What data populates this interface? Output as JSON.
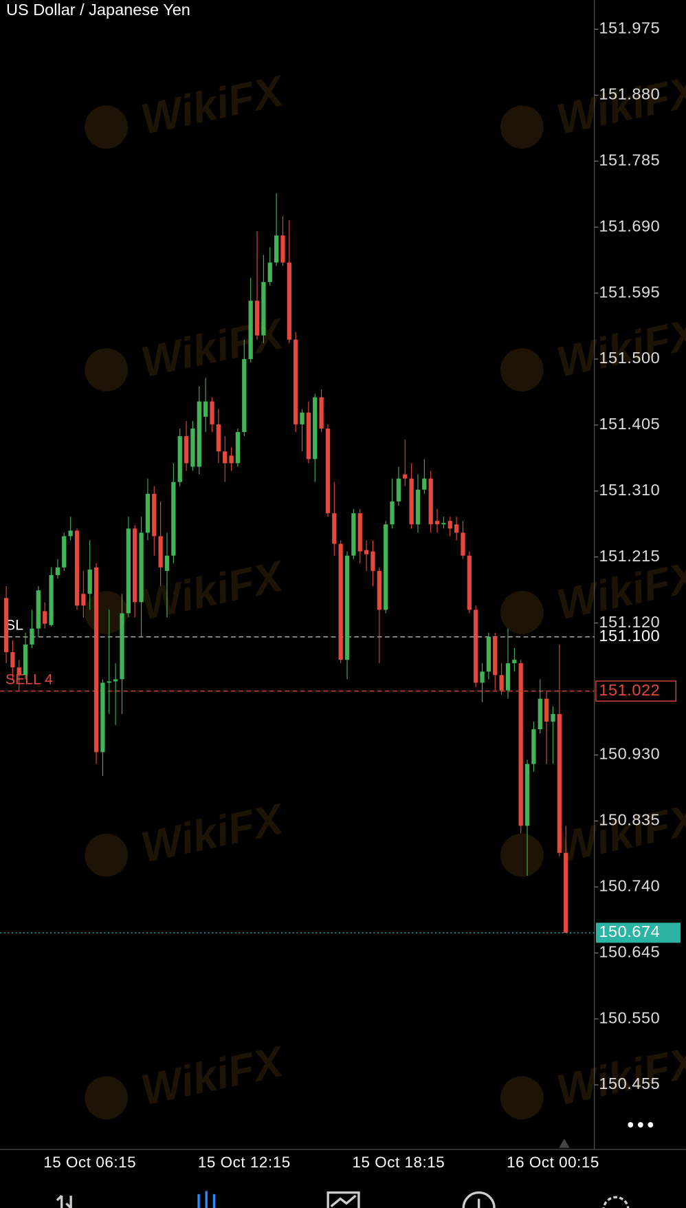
{
  "chart_data": {
    "type": "candlestick",
    "title": "US Dollar / Japanese Yen",
    "watermark": "WikiFX",
    "up_color": "#43b357",
    "down_color": "#e5483c",
    "categories": [
      null,
      null,
      null,
      null,
      null,
      null,
      null,
      null,
      null,
      null,
      null,
      null,
      null,
      "15 Oct 06:15",
      null,
      null,
      null,
      null,
      null,
      null,
      null,
      null,
      null,
      null,
      null,
      null,
      null,
      null,
      null,
      null,
      null,
      null,
      null,
      null,
      null,
      null,
      null,
      "15 Oct 12:15",
      null,
      null,
      null,
      null,
      null,
      null,
      null,
      null,
      null,
      null,
      null,
      null,
      null,
      null,
      null,
      null,
      null,
      null,
      null,
      null,
      null,
      null,
      null,
      "15 Oct 18:15",
      null,
      null,
      null,
      null,
      null,
      null,
      null,
      null,
      null,
      null,
      null,
      null,
      null,
      null,
      null,
      null,
      null,
      null,
      null,
      null,
      null,
      null,
      null,
      "16 Oct 00:15",
      null,
      null
    ],
    "series": [
      {
        "open": [
          151.156,
          151.078,
          151.056,
          151.045,
          151.089,
          151.112,
          151.137,
          151.117,
          151.189,
          151.2,
          151.245,
          151.253,
          151.162,
          151.162,
          151.2,
          150.934,
          151.034,
          151.036,
          151.039,
          151.134,
          151.256,
          151.15,
          151.25,
          151.306,
          151.245,
          151.195,
          151.217,
          151.323,
          151.389,
          151.345,
          151.345,
          151.417,
          151.439,
          151.406,
          151.367,
          151.361,
          151.35,
          151.395,
          151.5,
          151.584,
          151.534,
          151.611,
          151.639,
          151.678,
          151.639,
          151.528,
          151.406,
          151.423,
          151.356,
          151.445,
          151.4,
          151.278,
          151.234,
          151.067,
          151.217,
          151.278,
          151.225,
          151.223,
          151.195,
          151.139,
          151.262,
          151.295,
          151.334,
          151.328,
          151.262,
          151.312,
          151.328,
          151.267,
          151.262,
          151.267,
          151.262,
          151.25,
          151.217,
          151.139,
          151.034,
          151.05,
          151.1,
          151.045,
          151.023,
          151.062,
          151.062,
          150.828,
          150.917,
          150.967,
          151.011,
          150.978,
          150.989,
          150.789
        ],
        "high": [
          151.173,
          151.095,
          151.067,
          151.106,
          151.139,
          151.173,
          151.15,
          151.2,
          151.212,
          151.25,
          151.273,
          151.256,
          151.195,
          151.239,
          151.206,
          151.039,
          151.139,
          151.062,
          151.162,
          151.273,
          151.261,
          151.273,
          151.328,
          151.317,
          151.295,
          151.25,
          151.35,
          151.4,
          151.411,
          151.411,
          151.461,
          151.473,
          151.445,
          151.428,
          151.389,
          151.373,
          151.4,
          151.528,
          151.617,
          151.684,
          151.65,
          151.661,
          151.739,
          151.706,
          151.7,
          151.539,
          151.428,
          151.439,
          151.45,
          151.456,
          151.406,
          151.323,
          151.239,
          151.223,
          151.284,
          151.284,
          151.239,
          151.239,
          151.2,
          151.267,
          151.328,
          151.345,
          151.384,
          151.35,
          151.334,
          151.356,
          151.339,
          151.284,
          151.273,
          151.273,
          151.273,
          151.267,
          151.223,
          151.145,
          151.062,
          151.106,
          151.106,
          151.062,
          151.112,
          151.084,
          151.067,
          150.923,
          150.978,
          151.039,
          151.023,
          151.0,
          151.089,
          150.828
        ],
        "low": [
          151.062,
          151.039,
          151.023,
          151.039,
          151.084,
          151.1,
          151.112,
          151.115,
          151.184,
          151.195,
          151.239,
          151.139,
          151.128,
          151.139,
          150.917,
          150.9,
          150.989,
          150.973,
          150.989,
          151.128,
          151.128,
          151.1,
          151.239,
          151.217,
          151.173,
          151.128,
          151.206,
          151.317,
          151.339,
          151.339,
          151.334,
          151.395,
          151.395,
          151.35,
          151.323,
          151.339,
          151.345,
          151.389,
          151.495,
          151.528,
          151.523,
          151.606,
          151.634,
          151.634,
          151.523,
          151.395,
          151.367,
          151.35,
          151.323,
          151.395,
          151.273,
          151.217,
          151.062,
          151.039,
          151.212,
          151.206,
          151.195,
          151.173,
          151.062,
          151.134,
          151.256,
          151.289,
          151.317,
          151.256,
          151.25,
          151.306,
          151.25,
          151.25,
          151.256,
          151.245,
          151.239,
          151.212,
          151.134,
          151.028,
          151.006,
          151.039,
          151.023,
          151.017,
          151.011,
          151.05,
          150.817,
          150.756,
          150.906,
          150.961,
          150.917,
          150.917,
          150.784,
          150.674
        ],
        "close": [
          151.078,
          151.056,
          151.045,
          151.089,
          151.112,
          151.167,
          151.119,
          151.189,
          151.2,
          151.245,
          151.253,
          151.145,
          151.145,
          151.197,
          150.934,
          151.034,
          151.036,
          151.039,
          151.134,
          151.256,
          151.15,
          151.25,
          151.306,
          151.245,
          151.2,
          151.217,
          151.323,
          151.389,
          151.35,
          151.4,
          151.439,
          151.439,
          151.406,
          151.367,
          151.35,
          151.35,
          151.395,
          151.5,
          151.584,
          151.534,
          151.611,
          151.639,
          151.678,
          151.639,
          151.528,
          151.406,
          151.423,
          151.356,
          151.445,
          151.4,
          151.278,
          151.234,
          151.067,
          151.217,
          151.278,
          151.223,
          151.219,
          151.195,
          151.139,
          151.262,
          151.295,
          151.328,
          151.328,
          151.262,
          151.312,
          151.328,
          151.262,
          151.262,
          151.264,
          151.256,
          151.25,
          151.217,
          151.139,
          151.034,
          151.05,
          151.1,
          151.045,
          151.023,
          151.062,
          151.067,
          150.828,
          150.917,
          150.967,
          151.011,
          150.978,
          150.989,
          150.789,
          150.674
        ]
      }
    ],
    "ylim": [
      150.362,
      152.017
    ],
    "yticks": [
      151.975,
      {
        "value": 151.88,
        "label": "151.880"
      },
      151.785,
      {
        "value": 151.69,
        "label": "151.690"
      },
      151.595,
      {
        "value": 151.5,
        "label": "151.500"
      },
      151.405,
      {
        "value": 151.31,
        "label": "151.310"
      },
      151.215,
      {
        "value": 151.12,
        "label": "151.120"
      },
      {
        "value": 150.93,
        "label": "150.930"
      },
      150.835,
      {
        "value": 150.74,
        "label": "150.740"
      },
      150.645,
      {
        "value": 150.55,
        "label": "150.550"
      },
      150.455
    ],
    "levels": [
      {
        "label": "SL",
        "value": 151.1,
        "value_label": "151.100",
        "color": "#b8b8b8"
      },
      {
        "label": "SELL 4",
        "value": 151.022,
        "color": "#e5483c"
      },
      {
        "value": 150.674,
        "color": "#2bb3a3"
      }
    ]
  }
}
